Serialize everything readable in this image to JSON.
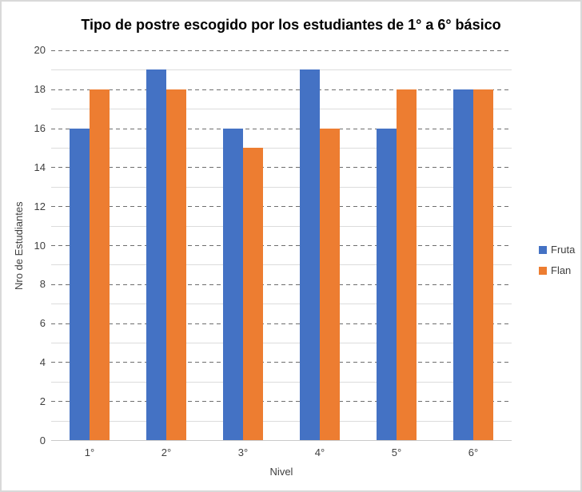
{
  "chart_data": {
    "type": "bar",
    "title": "Tipo de postre escogido por los estudiantes de 1° a 6° básico",
    "xlabel": "Nivel",
    "ylabel": "Nro de Estudiantes",
    "categories": [
      "1°",
      "2°",
      "3°",
      "4°",
      "5°",
      "6°"
    ],
    "series": [
      {
        "name": "Fruta",
        "color": "#4472C4",
        "values": [
          16,
          19,
          16,
          19,
          16,
          18
        ]
      },
      {
        "name": "Flan",
        "color": "#ED7D31",
        "values": [
          18,
          18,
          15,
          16,
          18,
          18
        ]
      }
    ],
    "ylim": [
      0,
      20
    ],
    "y_ticks": [
      0,
      2,
      4,
      6,
      8,
      10,
      12,
      14,
      16,
      18,
      20
    ],
    "y_major_step": 2,
    "y_minor_step": 1,
    "grid": "major dashed gray, minor solid light gray",
    "legend_position": "right"
  },
  "colors": {
    "series_fruta": "#4472C4",
    "series_flan": "#ED7D31",
    "major_gridline": "#6E6E6E",
    "minor_gridline": "#DCDCDC",
    "axis_text": "#3F3F3F",
    "title_text": "#000000",
    "chart_border": "#D9D9D9",
    "background": "#FFFFFF"
  }
}
